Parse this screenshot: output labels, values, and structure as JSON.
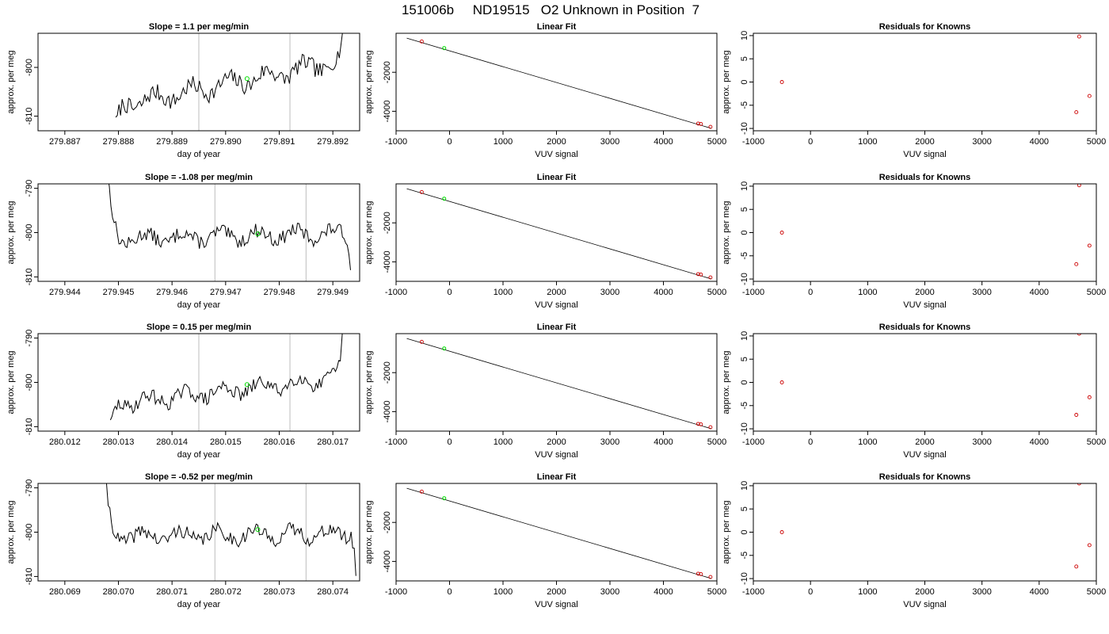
{
  "figure_title": "151006b     ND19515   O2 Unknown in Position  7",
  "colors": {
    "trace": "#000000",
    "unknown_point": "#00dd00",
    "known_point": "#cc0000",
    "vline": "#bdbdbd",
    "fit_line": "#000000"
  },
  "chart_data": [
    {
      "type": "line",
      "row": 0,
      "title": "Slope =  1.1  per meg/min",
      "xlabel": "day of year",
      "ylabel": "approx. per meg",
      "xlim": [
        279.8865,
        279.8925
      ],
      "ylim": [
        -813,
        -793
      ],
      "xticks": [
        279.887,
        279.888,
        279.889,
        279.89,
        279.891,
        279.892
      ],
      "xtick_labels": [
        "279.887",
        "279.888",
        "279.889",
        "279.890",
        "279.891",
        "279.892"
      ],
      "yticks": [
        -810,
        -800
      ],
      "ytick_labels": [
        "-810",
        "-800"
      ],
      "vlines": [
        279.8895,
        279.8912
      ],
      "trace": {
        "start": 279.88795,
        "end": 279.89225,
        "step": 3e-05,
        "base_start": -808,
        "base_slope_per_day": 2200,
        "amp": 2.2,
        "head_from": -814,
        "head_to": -809,
        "head_len": 0.0002,
        "tail_from": -800,
        "tail_to": -788,
        "tail_len": 0.00018,
        "seed": 7
      },
      "marker": {
        "x": 279.8904,
        "y": -802.3
      }
    },
    {
      "type": "scatter",
      "row": 0,
      "title": "Linear Fit",
      "xlabel": "VUV signal",
      "ylabel": "approx. per meg",
      "xlim": [
        -1000,
        5000
      ],
      "ylim": [
        -5000,
        0
      ],
      "xticks": [
        -1000,
        0,
        1000,
        2000,
        3000,
        4000,
        5000
      ],
      "xtick_labels": [
        "-1000",
        "0",
        "1000",
        "2000",
        "3000",
        "4000",
        "5000"
      ],
      "yticks": [
        -4000,
        -2000
      ],
      "ytick_labels": [
        "-4000",
        "-2000"
      ],
      "fit_line": {
        "x": [
          -800,
          4900
        ],
        "y": [
          -250,
          -4880
        ]
      },
      "knowns": {
        "x": [
          -520,
          4650,
          4700,
          4880
        ],
        "y": [
          -420,
          -4630,
          -4650,
          -4800
        ]
      },
      "unknown": {
        "x": [
          -100
        ],
        "y": [
          -760
        ]
      }
    },
    {
      "type": "scatter",
      "row": 0,
      "title": "Residuals for Knowns",
      "xlabel": "VUV signal",
      "ylabel": "approx. per meg",
      "xlim": [
        -1000,
        5000
      ],
      "ylim": [
        -10.5,
        10.5
      ],
      "xticks": [
        -1000,
        0,
        1000,
        2000,
        3000,
        4000,
        5000
      ],
      "xtick_labels": [
        "-1000",
        "0",
        "1000",
        "2000",
        "3000",
        "4000",
        "5000"
      ],
      "yticks": [
        -10,
        -5,
        0,
        5,
        10
      ],
      "ytick_labels": [
        "-10",
        "-5",
        "0",
        "5",
        "10"
      ],
      "knowns": {
        "x": [
          -500,
          4650,
          4700,
          4880
        ],
        "y": [
          0,
          -6.5,
          9.8,
          -3
        ]
      }
    },
    {
      "type": "line",
      "row": 1,
      "title": "Slope =  -1.08  per meg/min",
      "xlabel": "day of year",
      "ylabel": "approx. per meg",
      "xlim": [
        279.9435,
        279.9495
      ],
      "ylim": [
        -811,
        -789
      ],
      "xticks": [
        279.944,
        279.945,
        279.946,
        279.947,
        279.948,
        279.949
      ],
      "xtick_labels": [
        "279.944",
        "279.945",
        "279.946",
        "279.947",
        "279.948",
        "279.949"
      ],
      "yticks": [
        -810,
        -800,
        -790
      ],
      "ytick_labels": [
        "-810",
        "-800",
        "-790"
      ],
      "vlines": [
        279.9468,
        279.9485
      ],
      "trace": {
        "start": 279.9448,
        "end": 279.94935,
        "step": 3e-05,
        "base_start": -801.5,
        "base_slope_per_day": 300,
        "amp": 2.0,
        "head_from": -788,
        "head_to": -801,
        "head_len": 0.00025,
        "tail_from": -801,
        "tail_to": -812,
        "tail_len": 0.00012,
        "seed": 13
      },
      "marker": {
        "x": 279.9476,
        "y": -800.3
      }
    },
    {
      "type": "scatter",
      "row": 1,
      "title": "Linear Fit",
      "xlabel": "VUV signal",
      "ylabel": "approx. per meg",
      "xlim": [
        -1000,
        5000
      ],
      "ylim": [
        -5000,
        0
      ],
      "xticks": [
        -1000,
        0,
        1000,
        2000,
        3000,
        4000,
        5000
      ],
      "xtick_labels": [
        "-1000",
        "0",
        "1000",
        "2000",
        "3000",
        "4000",
        "5000"
      ],
      "yticks": [
        -4000,
        -2000
      ],
      "ytick_labels": [
        "-4000",
        "-2000"
      ],
      "fit_line": {
        "x": [
          -800,
          4900
        ],
        "y": [
          -250,
          -4880
        ]
      },
      "knowns": {
        "x": [
          -520,
          4650,
          4700,
          4880
        ],
        "y": [
          -420,
          -4630,
          -4650,
          -4800
        ]
      },
      "unknown": {
        "x": [
          -100
        ],
        "y": [
          -760
        ]
      }
    },
    {
      "type": "scatter",
      "row": 1,
      "title": "Residuals for Knowns",
      "xlabel": "VUV signal",
      "ylabel": "approx. per meg",
      "xlim": [
        -1000,
        5000
      ],
      "ylim": [
        -10.5,
        10.5
      ],
      "xticks": [
        -1000,
        0,
        1000,
        2000,
        3000,
        4000,
        5000
      ],
      "xtick_labels": [
        "-1000",
        "0",
        "1000",
        "2000",
        "3000",
        "4000",
        "5000"
      ],
      "yticks": [
        -10,
        -5,
        0,
        5,
        10
      ],
      "ytick_labels": [
        "-10",
        "-5",
        "0",
        "5",
        "10"
      ],
      "knowns": {
        "x": [
          -500,
          4650,
          4700,
          4880
        ],
        "y": [
          0,
          -6.8,
          10.2,
          -2.8
        ]
      }
    },
    {
      "type": "line",
      "row": 2,
      "title": "Slope =  0.15  per meg/min",
      "xlabel": "day of year",
      "ylabel": "approx. per meg",
      "xlim": [
        280.0115,
        280.0175
      ],
      "ylim": [
        -811,
        -789
      ],
      "xticks": [
        280.012,
        280.013,
        280.014,
        280.015,
        280.016,
        280.017
      ],
      "xtick_labels": [
        "280.012",
        "280.013",
        "280.014",
        "280.015",
        "280.016",
        "280.017"
      ],
      "yticks": [
        -810,
        -800,
        -790
      ],
      "ytick_labels": [
        "-810",
        "-800",
        "-790"
      ],
      "vlines": [
        280.0145,
        280.0162
      ],
      "trace": {
        "start": 280.01285,
        "end": 280.0172,
        "step": 3e-05,
        "base_start": -805,
        "base_slope_per_day": 1400,
        "amp": 2.0,
        "head_from": -812,
        "head_to": -806,
        "head_len": 0.00022,
        "tail_from": -800,
        "tail_to": -788,
        "tail_len": 0.00015,
        "seed": 29
      },
      "marker": {
        "x": 280.0154,
        "y": -800.5
      }
    },
    {
      "type": "scatter",
      "row": 2,
      "title": "Linear Fit",
      "xlabel": "VUV signal",
      "ylabel": "approx. per meg",
      "xlim": [
        -1000,
        5000
      ],
      "ylim": [
        -5000,
        0
      ],
      "xticks": [
        -1000,
        0,
        1000,
        2000,
        3000,
        4000,
        5000
      ],
      "xtick_labels": [
        "-1000",
        "0",
        "1000",
        "2000",
        "3000",
        "4000",
        "5000"
      ],
      "yticks": [
        -4000,
        -2000
      ],
      "ytick_labels": [
        "-4000",
        "-2000"
      ],
      "fit_line": {
        "x": [
          -800,
          4900
        ],
        "y": [
          -250,
          -4880
        ]
      },
      "knowns": {
        "x": [
          -520,
          4650,
          4700,
          4880
        ],
        "y": [
          -420,
          -4630,
          -4650,
          -4800
        ]
      },
      "unknown": {
        "x": [
          -100
        ],
        "y": [
          -760
        ]
      }
    },
    {
      "type": "scatter",
      "row": 2,
      "title": "Residuals for Knowns",
      "xlabel": "VUV signal",
      "ylabel": "approx. per meg",
      "xlim": [
        -1000,
        5000
      ],
      "ylim": [
        -10.5,
        10.5
      ],
      "xticks": [
        -1000,
        0,
        1000,
        2000,
        3000,
        4000,
        5000
      ],
      "xtick_labels": [
        "-1000",
        "0",
        "1000",
        "2000",
        "3000",
        "4000",
        "5000"
      ],
      "yticks": [
        -10,
        -5,
        0,
        5,
        10
      ],
      "ytick_labels": [
        "-10",
        "-5",
        "0",
        "5",
        "10"
      ],
      "knowns": {
        "x": [
          -500,
          4650,
          4700,
          4880
        ],
        "y": [
          0,
          -7,
          10.5,
          -3.2
        ]
      }
    },
    {
      "type": "line",
      "row": 3,
      "title": "Slope =  -0.52  per meg/min",
      "xlabel": "day of year",
      "ylabel": "approx. per meg",
      "xlim": [
        280.0685,
        280.0745
      ],
      "ylim": [
        -811,
        -789
      ],
      "xticks": [
        280.069,
        280.07,
        280.071,
        280.072,
        280.073,
        280.074
      ],
      "xtick_labels": [
        "280.069",
        "280.070",
        "280.071",
        "280.072",
        "280.073",
        "280.074"
      ],
      "yticks": [
        -810,
        -800,
        -790
      ],
      "ytick_labels": [
        "-810",
        "-800",
        "-790"
      ],
      "vlines": [
        280.0718,
        280.0735
      ],
      "trace": {
        "start": 280.06975,
        "end": 280.07445,
        "step": 3e-05,
        "base_start": -801,
        "base_slope_per_day": 150,
        "amp": 2.0,
        "head_from": -788,
        "head_to": -800,
        "head_len": 0.00025,
        "tail_from": -800,
        "tail_to": -812,
        "tail_len": 0.00012,
        "seed": 41
      },
      "marker": {
        "x": 280.0726,
        "y": -799.4
      }
    },
    {
      "type": "scatter",
      "row": 3,
      "title": "Linear Fit",
      "xlabel": "VUV signal",
      "ylabel": "approx. per meg",
      "xlim": [
        -1000,
        5000
      ],
      "ylim": [
        -5000,
        0
      ],
      "xticks": [
        -1000,
        0,
        1000,
        2000,
        3000,
        4000,
        5000
      ],
      "xtick_labels": [
        "-1000",
        "0",
        "1000",
        "2000",
        "3000",
        "4000",
        "5000"
      ],
      "yticks": [
        -4000,
        -2000
      ],
      "ytick_labels": [
        "-4000",
        "-2000"
      ],
      "fit_line": {
        "x": [
          -800,
          4900
        ],
        "y": [
          -250,
          -4880
        ]
      },
      "knowns": {
        "x": [
          -520,
          4650,
          4700,
          4880
        ],
        "y": [
          -420,
          -4630,
          -4650,
          -4800
        ]
      },
      "unknown": {
        "x": [
          -100
        ],
        "y": [
          -760
        ]
      }
    },
    {
      "type": "scatter",
      "row": 3,
      "title": "Residuals for Knowns",
      "xlabel": "VUV signal",
      "ylabel": "approx. per meg",
      "xlim": [
        -1000,
        5000
      ],
      "ylim": [
        -10.5,
        10.5
      ],
      "xticks": [
        -1000,
        0,
        1000,
        2000,
        3000,
        4000,
        5000
      ],
      "xtick_labels": [
        "-1000",
        "0",
        "1000",
        "2000",
        "3000",
        "4000",
        "5000"
      ],
      "yticks": [
        -10,
        -5,
        0,
        5,
        10
      ],
      "ytick_labels": [
        "-10",
        "-5",
        "0",
        "5",
        "10"
      ],
      "knowns": {
        "x": [
          -500,
          4650,
          4700,
          4880
        ],
        "y": [
          0,
          -7.4,
          10.5,
          -2.8
        ]
      }
    }
  ]
}
